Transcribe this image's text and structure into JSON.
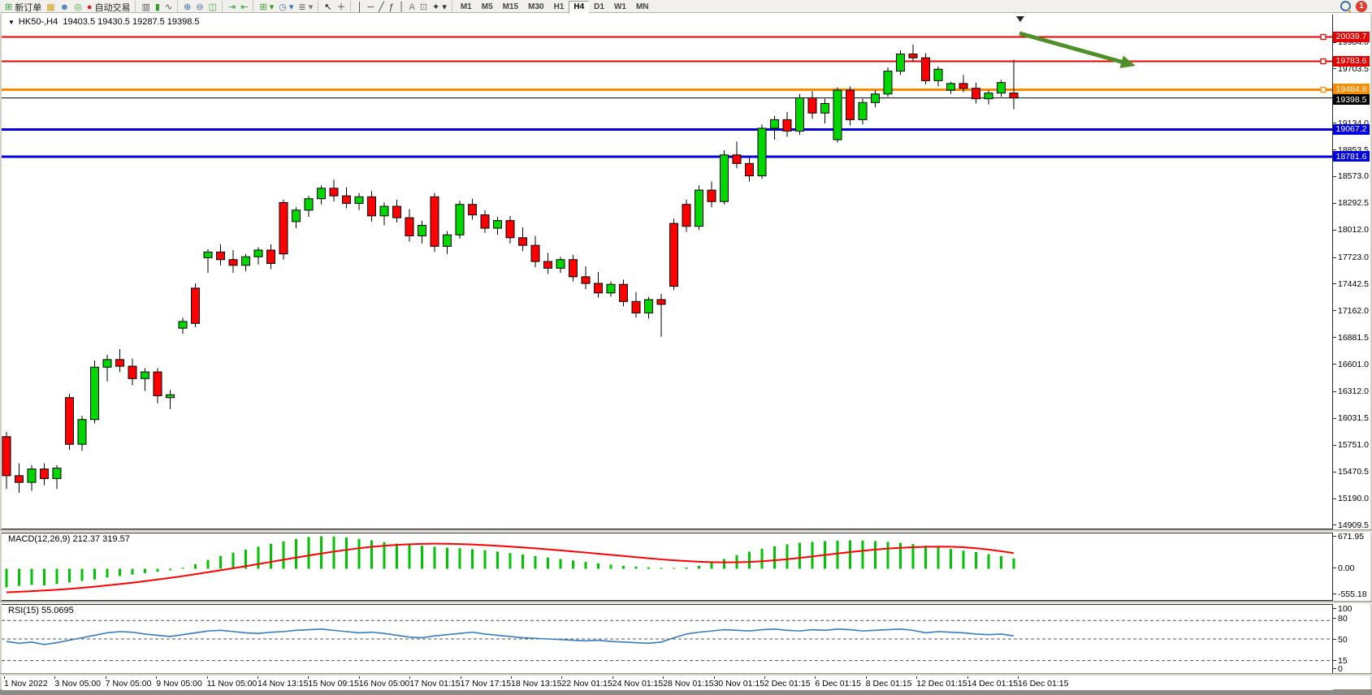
{
  "toolbar": {
    "buttons_left": [
      {
        "name": "new-order-button",
        "glyph": "⊞",
        "glyph_color": "#2e9e2e",
        "label": "新订单"
      },
      {
        "name": "market-watch-icon",
        "glyph": "▦",
        "glyph_color": "#d4a017",
        "label": ""
      },
      {
        "name": "data-window-icon",
        "glyph": "☻",
        "glyph_color": "#4a7ebb",
        "label": ""
      },
      {
        "name": "navigator-icon",
        "glyph": "◎",
        "glyph_color": "#3faa3f",
        "label": ""
      },
      {
        "name": "autotrading-button",
        "glyph": "●",
        "glyph_color": "#cc2222",
        "label": "自动交易"
      },
      {
        "sep": true
      },
      {
        "name": "bar-chart-icon",
        "glyph": "▥",
        "glyph_color": "#555555",
        "label": ""
      },
      {
        "name": "candlestick-chart-icon",
        "glyph": "▮",
        "glyph_color": "#2e9e2e",
        "label": ""
      },
      {
        "name": "line-chart-icon",
        "glyph": "∿",
        "glyph_color": "#555555",
        "label": ""
      },
      {
        "sep": true
      },
      {
        "name": "zoom-in-icon",
        "glyph": "⊕",
        "glyph_color": "#3c6ea5",
        "label": ""
      },
      {
        "name": "zoom-out-icon",
        "glyph": "⊖",
        "glyph_color": "#3c6ea5",
        "label": ""
      },
      {
        "name": "tile-windows-icon",
        "glyph": "◫",
        "glyph_color": "#3faa3f",
        "label": ""
      },
      {
        "sep": true
      },
      {
        "name": "auto-scroll-icon",
        "glyph": "⇥",
        "glyph_color": "#2e9e2e",
        "label": ""
      },
      {
        "name": "chart-shift-icon",
        "glyph": "⇤",
        "glyph_color": "#2e9e2e",
        "label": ""
      },
      {
        "sep": true
      },
      {
        "name": "new-window-icon",
        "glyph": "⊞ ▾",
        "glyph_color": "#2e9e2e",
        "label": ""
      },
      {
        "name": "period-clock-icon",
        "glyph": "◷ ▾",
        "glyph_color": "#3c6ea5",
        "label": ""
      },
      {
        "name": "indicators-icon",
        "glyph": "≣ ▾",
        "glyph_color": "#777777",
        "label": ""
      },
      {
        "sep": true
      },
      {
        "name": "cursor-tool-icon",
        "glyph": "↖",
        "glyph_color": "#000000",
        "label": ""
      },
      {
        "name": "crosshair-tool-icon",
        "glyph": "＋",
        "glyph_color": "#333333",
        "label": ""
      },
      {
        "sep": true
      },
      {
        "name": "vertical-line-tool-icon",
        "glyph": "│",
        "glyph_color": "#333333",
        "label": ""
      },
      {
        "name": "horizontal-line-tool-icon",
        "glyph": "─",
        "glyph_color": "#333333",
        "label": ""
      },
      {
        "name": "trendline-tool-icon",
        "glyph": "╱",
        "glyph_color": "#333333",
        "label": ""
      },
      {
        "name": "fibonacci-tool-icon",
        "glyph": "ƒ",
        "glyph_color": "#333333",
        "label": ""
      },
      {
        "name": "channels-tool-icon",
        "glyph": "┋",
        "glyph_color": "#777777",
        "label": ""
      },
      {
        "name": "text-tool-icon",
        "glyph": "A",
        "glyph_color": "#777777",
        "label": ""
      },
      {
        "name": "text-label-tool-icon",
        "glyph": "⊡",
        "glyph_color": "#777777",
        "label": ""
      },
      {
        "name": "arrows-tool-icon",
        "glyph": "✦ ▾",
        "glyph_color": "#333333",
        "label": ""
      },
      {
        "sep": true
      }
    ],
    "timeframes": [
      "M1",
      "M5",
      "M15",
      "M30",
      "H1",
      "H4",
      "D1",
      "W1",
      "MN"
    ],
    "active_timeframe": "H4",
    "notification_count": "1"
  },
  "chart": {
    "collapse_caret": "▼",
    "title_symbol": "HK50-,H4",
    "title_ohlc": "19403.5 19430.5 19287.5 19398.5"
  },
  "macd_panel": {
    "label": "MACD(12,26,9) 212.37 319.57",
    "scale": [
      "671.95",
      "0.00",
      "-555.18"
    ]
  },
  "rsi_panel": {
    "label": "RSI(15) 55.0695",
    "scale": [
      "100",
      "80",
      "50",
      "15",
      "0"
    ]
  },
  "price_axis": {
    "ticks": [
      19984.0,
      19703.5,
      19134.0,
      18853.5,
      18573.0,
      18292.5,
      18012.0,
      17723.0,
      17442.5,
      17162.0,
      16881.5,
      16601.0,
      16312.0,
      16031.5,
      15751.0,
      15470.5,
      15190.0,
      14909.5
    ],
    "tick_labels": [
      "19984.0",
      "19703.5",
      "19134.0",
      "18853.5",
      "18573.0",
      "18292.5",
      "18012.0",
      "17723.0",
      "17442.5",
      "17162.0",
      "16881.5",
      "16601.0",
      "16312.0",
      "16031.5",
      "15751.0",
      "15470.5",
      "15190.0",
      "14909.5"
    ],
    "tags": [
      {
        "text": "20039.7",
        "bg": "#e60000"
      },
      {
        "text": "19783.6",
        "bg": "#e60000"
      },
      {
        "text": "19484.8",
        "bg": "#ff8c00"
      },
      {
        "text": "19398.5",
        "bg": "#000000"
      },
      {
        "text": "19067.2",
        "bg": "#0000e0"
      },
      {
        "text": "18781.6",
        "bg": "#0000e0"
      }
    ]
  },
  "time_axis": [
    "1 Nov 2022",
    "3 Nov 05:00",
    "7 Nov 05:00",
    "9 Nov 05:00",
    "11 Nov 05:00",
    "14 Nov 13:15",
    "15 Nov 09:15",
    "16 Nov 05:00",
    "17 Nov 01:15",
    "17 Nov 17:15",
    "18 Nov 13:15",
    "22 Nov 01:15",
    "24 Nov 01:15",
    "28 Nov 01:15",
    "30 Nov 01:15",
    "2 Dec 01:15",
    "6 Dec 01:15",
    "8 Dec 01:15",
    "12 Dec 01:15",
    "14 Dec 01:15",
    "16 Dec 01:15"
  ],
  "chart_data": [
    {
      "type": "candlestick",
      "symbol": "HK50-",
      "timeframe": "H4",
      "last_ohlc": [
        19403.5,
        19430.5,
        19287.5,
        19398.5
      ],
      "y_range": [
        14866,
        20274
      ],
      "bull_color": "#00d600",
      "bear_color": "#ff0000",
      "candles": [
        [
          15840,
          15890,
          15290,
          15430
        ],
        [
          15430,
          15560,
          15250,
          15360
        ],
        [
          15360,
          15540,
          15270,
          15500
        ],
        [
          15500,
          15560,
          15330,
          15400
        ],
        [
          15400,
          15540,
          15290,
          15510
        ],
        [
          16250,
          16290,
          15700,
          15760
        ],
        [
          15760,
          16060,
          15690,
          16020
        ],
        [
          16020,
          16640,
          15980,
          16570
        ],
        [
          16570,
          16700,
          16420,
          16650
        ],
        [
          16650,
          16760,
          16520,
          16580
        ],
        [
          16580,
          16660,
          16380,
          16450
        ],
        [
          16450,
          16560,
          16320,
          16520
        ],
        [
          16520,
          16560,
          16190,
          16270
        ],
        [
          16250,
          16330,
          16130,
          16280
        ],
        [
          16980,
          17090,
          16920,
          17050
        ],
        [
          17400,
          17450,
          16990,
          17030
        ],
        [
          17720,
          17810,
          17560,
          17780
        ],
        [
          17780,
          17860,
          17640,
          17700
        ],
        [
          17700,
          17800,
          17560,
          17640
        ],
        [
          17640,
          17760,
          17580,
          17730
        ],
        [
          17730,
          17830,
          17650,
          17800
        ],
        [
          17800,
          17860,
          17600,
          17660
        ],
        [
          18300,
          18330,
          17700,
          17760
        ],
        [
          18100,
          18250,
          18030,
          18220
        ],
        [
          18220,
          18370,
          18150,
          18340
        ],
        [
          18340,
          18480,
          18280,
          18450
        ],
        [
          18450,
          18540,
          18310,
          18370
        ],
        [
          18370,
          18460,
          18240,
          18290
        ],
        [
          18290,
          18400,
          18220,
          18360
        ],
        [
          18360,
          18420,
          18100,
          18160
        ],
        [
          18160,
          18300,
          18060,
          18260
        ],
        [
          18260,
          18330,
          18090,
          18140
        ],
        [
          18140,
          18230,
          17890,
          17950
        ],
        [
          17950,
          18110,
          17870,
          18060
        ],
        [
          18360,
          18400,
          17780,
          17840
        ],
        [
          17840,
          18000,
          17760,
          17960
        ],
        [
          17960,
          18320,
          17920,
          18280
        ],
        [
          18280,
          18340,
          18120,
          18170
        ],
        [
          18170,
          18220,
          17980,
          18030
        ],
        [
          18030,
          18150,
          17960,
          18110
        ],
        [
          18110,
          18160,
          17870,
          17930
        ],
        [
          17930,
          18040,
          17790,
          17850
        ],
        [
          17850,
          17950,
          17620,
          17680
        ],
        [
          17680,
          17770,
          17550,
          17610
        ],
        [
          17610,
          17730,
          17560,
          17700
        ],
        [
          17700,
          17750,
          17470,
          17520
        ],
        [
          17520,
          17630,
          17390,
          17450
        ],
        [
          17450,
          17570,
          17300,
          17350
        ],
        [
          17350,
          17470,
          17310,
          17440
        ],
        [
          17440,
          17490,
          17210,
          17260
        ],
        [
          17260,
          17360,
          17090,
          17140
        ],
        [
          17140,
          17310,
          17080,
          17280
        ],
        [
          17280,
          17340,
          16890,
          17230
        ],
        [
          18080,
          18130,
          17380,
          17420
        ],
        [
          18280,
          18330,
          17990,
          18050
        ],
        [
          18050,
          18480,
          18010,
          18430
        ],
        [
          18430,
          18520,
          18250,
          18310
        ],
        [
          18310,
          18850,
          18280,
          18800
        ],
        [
          18800,
          18940,
          18660,
          18710
        ],
        [
          18710,
          18780,
          18520,
          18580
        ],
        [
          18580,
          19120,
          18550,
          19080
        ],
        [
          19080,
          19210,
          18960,
          19170
        ],
        [
          19170,
          19250,
          18990,
          19050
        ],
        [
          19050,
          19440,
          19010,
          19400
        ],
        [
          19400,
          19470,
          19180,
          19240
        ],
        [
          19240,
          19390,
          19130,
          19340
        ],
        [
          18960,
          19510,
          18930,
          19480
        ],
        [
          19480,
          19520,
          19110,
          19170
        ],
        [
          19170,
          19390,
          19120,
          19350
        ],
        [
          19350,
          19480,
          19300,
          19440
        ],
        [
          19440,
          19720,
          19410,
          19680
        ],
        [
          19680,
          19900,
          19640,
          19860
        ],
        [
          19860,
          19960,
          19780,
          19820
        ],
        [
          19820,
          19870,
          19540,
          19580
        ],
        [
          19580,
          19730,
          19520,
          19700
        ],
        [
          19480,
          19570,
          19440,
          19550
        ],
        [
          19550,
          19640,
          19460,
          19500
        ],
        [
          19500,
          19560,
          19340,
          19390
        ],
        [
          19390,
          19480,
          19330,
          19450
        ],
        [
          19450,
          19590,
          19410,
          19560
        ],
        [
          19450,
          19800,
          19280,
          19398.5
        ]
      ],
      "hlines": [
        {
          "price": 20039.7,
          "color": "#e60000",
          "width": 2,
          "handle": true
        },
        {
          "price": 19783.6,
          "color": "#e60000",
          "width": 2,
          "handle": true
        },
        {
          "price": 19484.8,
          "color": "#ff8c00",
          "width": 3,
          "handle": true
        },
        {
          "price": 19398.5,
          "color": "#000000",
          "width": 1,
          "handle": false
        },
        {
          "price": 19067.2,
          "color": "#0000e0",
          "width": 3,
          "handle": false
        },
        {
          "price": 18781.6,
          "color": "#0000e0",
          "width": 3,
          "handle": false
        }
      ],
      "arrow": {
        "from": [
          1253,
          24
        ],
        "to": [
          1396,
          64
        ],
        "color": "#4f8f28"
      },
      "shift_marker_x": 1254
    },
    {
      "type": "macd",
      "label": "MACD(12,26,9) 212.37 319.57",
      "range": [
        -555.18,
        671.95
      ],
      "histogram_color": "#00c400",
      "signal_color": "#ff0000",
      "histogram": [
        -380,
        -350,
        -330,
        -340,
        -310,
        -280,
        -250,
        -220,
        -180,
        -150,
        -120,
        -90,
        -60,
        -30,
        20,
        90,
        180,
        260,
        330,
        390,
        450,
        510,
        560,
        610,
        650,
        665,
        660,
        640,
        610,
        580,
        545,
        515,
        490,
        470,
        450,
        430,
        420,
        400,
        380,
        350,
        320,
        290,
        260,
        230,
        200,
        170,
        140,
        110,
        85,
        60,
        45,
        30,
        20,
        15,
        25,
        60,
        120,
        200,
        280,
        350,
        410,
        460,
        500,
        530,
        550,
        565,
        575,
        580,
        575,
        565,
        550,
        530,
        505,
        475,
        440,
        405,
        370,
        340,
        300,
        260,
        212.37
      ],
      "signal": [
        -480,
        -470,
        -458,
        -444,
        -428,
        -410,
        -390,
        -366,
        -340,
        -313,
        -285,
        -253,
        -220,
        -186,
        -150,
        -111,
        -70,
        -30,
        10,
        52,
        95,
        140,
        185,
        228,
        270,
        312,
        350,
        387,
        420,
        448,
        470,
        487,
        500,
        508,
        512,
        511,
        505,
        495,
        483,
        469,
        453,
        435,
        416,
        396,
        375,
        353,
        331,
        308,
        285,
        261,
        237,
        214,
        192,
        173,
        157,
        144,
        135,
        131,
        133,
        140,
        153,
        172,
        196,
        223,
        252,
        282,
        312,
        341,
        368,
        392,
        412,
        428,
        440,
        448,
        452,
        450,
        440,
        420,
        392,
        358,
        319.57
      ]
    },
    {
      "type": "line",
      "label": "RSI(15) 55.0695",
      "range": [
        0,
        100
      ],
      "levels": [
        80,
        50,
        15
      ],
      "line_color": "#3a7bbe",
      "values": [
        46,
        43,
        45,
        41,
        44,
        48,
        52,
        56,
        60,
        62,
        61,
        58,
        56,
        54,
        57,
        60,
        63,
        64,
        62,
        60,
        59,
        61,
        62,
        64,
        65,
        66,
        64,
        62,
        60,
        61,
        59,
        56,
        53,
        52,
        55,
        57,
        59,
        61,
        58,
        56,
        54,
        52,
        51,
        50,
        49,
        48,
        47,
        48,
        46,
        45,
        44,
        43,
        45,
        52,
        58,
        61,
        63,
        65,
        64,
        63,
        65,
        66,
        64,
        63,
        65,
        64,
        66,
        65,
        63,
        64,
        65,
        66,
        64,
        60,
        62,
        61,
        60,
        58,
        57,
        58,
        55.07
      ]
    }
  ]
}
